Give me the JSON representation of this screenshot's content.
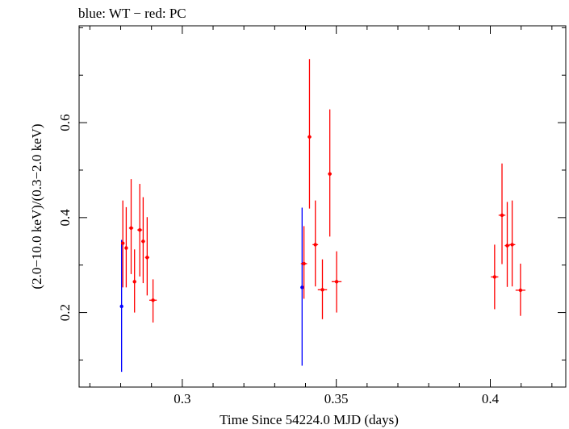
{
  "chart_data": {
    "type": "scatter",
    "title": "blue: WT − red: PC",
    "xlabel": "Time Since 54224.0 MJD (days)",
    "ylabel": "(2.0−10.0 keV)/(0.3−2.0 keV)",
    "xlim": [
      0.2665,
      0.4245
    ],
    "ylim": [
      0.043,
      0.804
    ],
    "x_ticks": [
      {
        "value": 0.3,
        "label": "0.3"
      },
      {
        "value": 0.35,
        "label": "0.35"
      },
      {
        "value": 0.4,
        "label": "0.4"
      }
    ],
    "y_ticks": [
      {
        "value": 0.2,
        "label": "0.2"
      },
      {
        "value": 0.4,
        "label": "0.4"
      },
      {
        "value": 0.6,
        "label": "0.6"
      }
    ],
    "grid": false,
    "series": [
      {
        "name": "WT",
        "color": "#0000ff",
        "points": [
          {
            "x": 0.2803,
            "y": 0.213,
            "xerr": 0.0,
            "ylo": 0.075,
            "yhi": 0.353
          },
          {
            "x": 0.3389,
            "y": 0.253,
            "xerr": 0.0,
            "ylo": 0.088,
            "yhi": 0.421
          }
        ]
      },
      {
        "name": "PC",
        "color": "#ff0000",
        "points": [
          {
            "x": 0.2807,
            "y": 0.346,
            "xerr": 0.0005,
            "ylo": 0.253,
            "yhi": 0.436
          },
          {
            "x": 0.2818,
            "y": 0.336,
            "xerr": 0.0005,
            "ylo": 0.253,
            "yhi": 0.422
          },
          {
            "x": 0.2834,
            "y": 0.378,
            "xerr": 0.0007,
            "ylo": 0.281,
            "yhi": 0.481
          },
          {
            "x": 0.2845,
            "y": 0.265,
            "xerr": 0.0005,
            "ylo": 0.2,
            "yhi": 0.333
          },
          {
            "x": 0.2862,
            "y": 0.374,
            "xerr": 0.0008,
            "ylo": 0.276,
            "yhi": 0.471
          },
          {
            "x": 0.2873,
            "y": 0.35,
            "xerr": 0.0006,
            "ylo": 0.262,
            "yhi": 0.443
          },
          {
            "x": 0.2886,
            "y": 0.316,
            "xerr": 0.0007,
            "ylo": 0.236,
            "yhi": 0.401
          },
          {
            "x": 0.2905,
            "y": 0.226,
            "xerr": 0.0012,
            "ylo": 0.179,
            "yhi": 0.27
          },
          {
            "x": 0.3395,
            "y": 0.303,
            "xerr": 0.001,
            "ylo": 0.229,
            "yhi": 0.382
          },
          {
            "x": 0.3413,
            "y": 0.57,
            "xerr": 0.0006,
            "ylo": 0.419,
            "yhi": 0.734
          },
          {
            "x": 0.3432,
            "y": 0.343,
            "xerr": 0.0009,
            "ylo": 0.255,
            "yhi": 0.436
          },
          {
            "x": 0.3455,
            "y": 0.248,
            "xerr": 0.0015,
            "ylo": 0.186,
            "yhi": 0.312
          },
          {
            "x": 0.3479,
            "y": 0.492,
            "xerr": 0.0006,
            "ylo": 0.36,
            "yhi": 0.628
          },
          {
            "x": 0.3501,
            "y": 0.265,
            "xerr": 0.0016,
            "ylo": 0.2,
            "yhi": 0.329
          },
          {
            "x": 0.4014,
            "y": 0.275,
            "xerr": 0.0012,
            "ylo": 0.207,
            "yhi": 0.343
          },
          {
            "x": 0.4038,
            "y": 0.405,
            "xerr": 0.0011,
            "ylo": 0.302,
            "yhi": 0.514
          },
          {
            "x": 0.4055,
            "y": 0.341,
            "xerr": 0.0008,
            "ylo": 0.254,
            "yhi": 0.433
          },
          {
            "x": 0.4071,
            "y": 0.343,
            "xerr": 0.001,
            "ylo": 0.255,
            "yhi": 0.436
          },
          {
            "x": 0.4098,
            "y": 0.247,
            "xerr": 0.0016,
            "ylo": 0.193,
            "yhi": 0.303
          }
        ]
      }
    ]
  }
}
